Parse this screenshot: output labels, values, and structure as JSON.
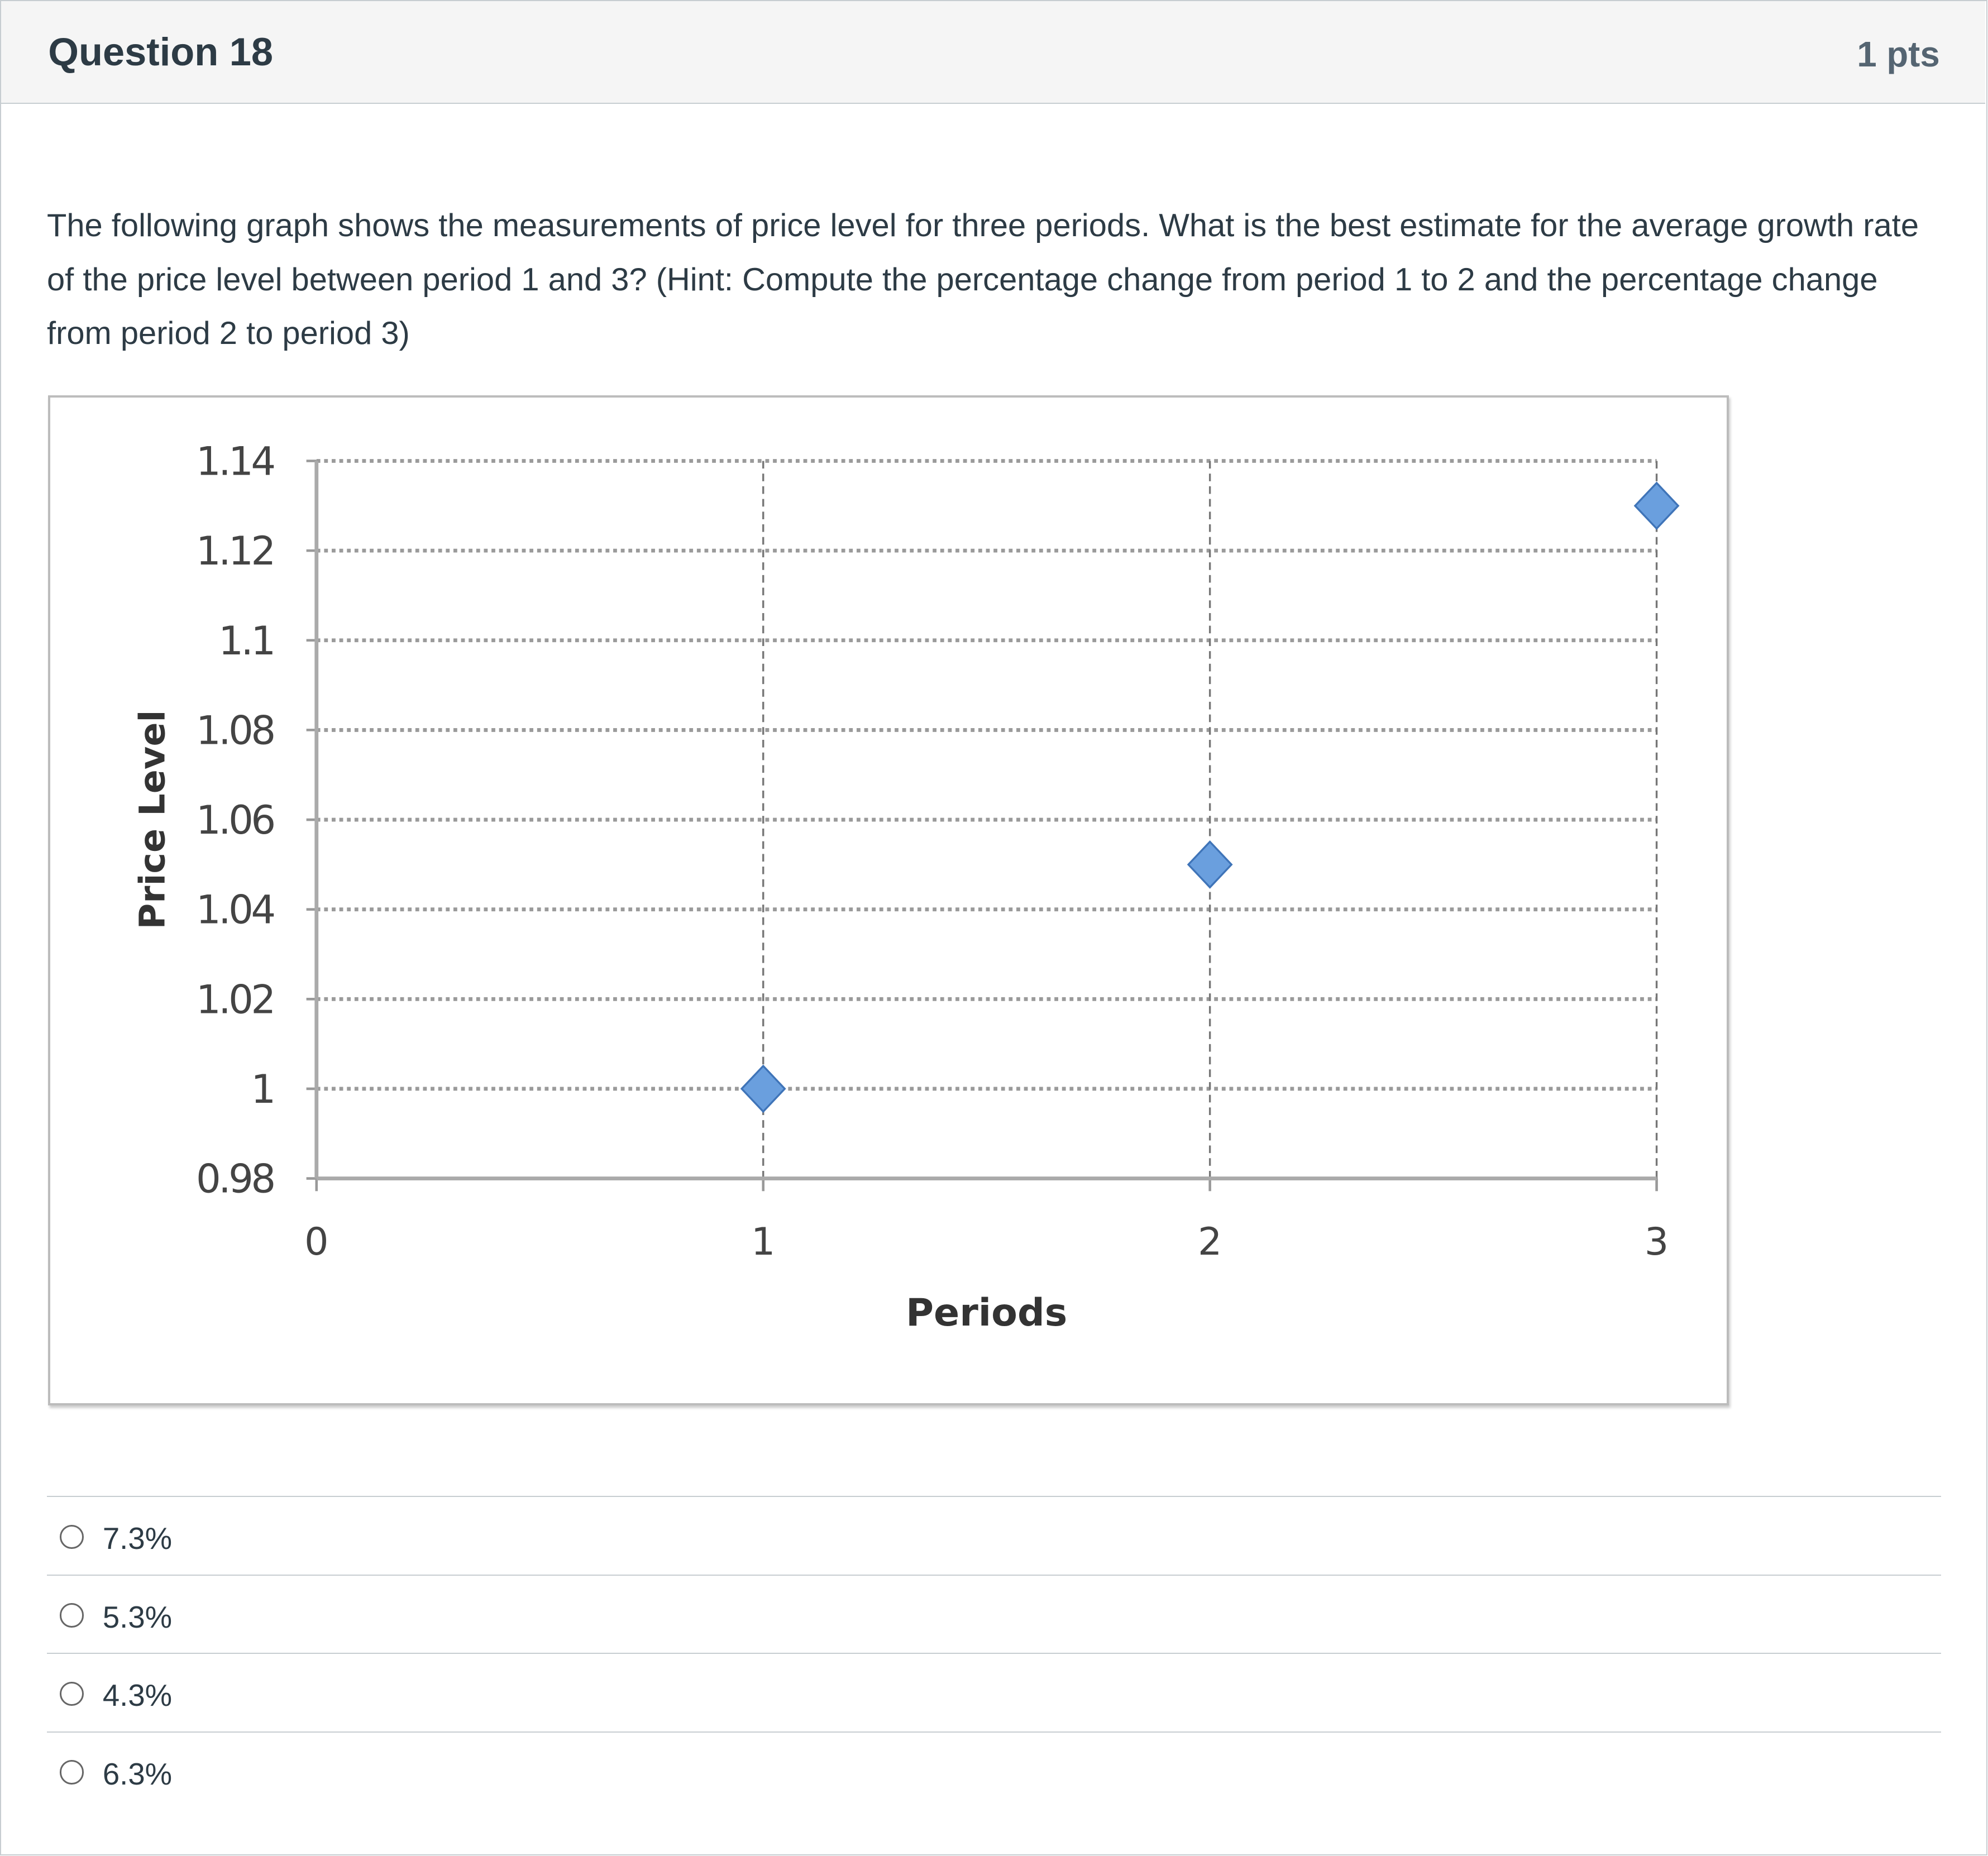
{
  "question": {
    "title": "Question 18",
    "points": "1 pts",
    "text": "The following graph shows the measurements of price level for three periods. What is the best estimate for the average growth rate of the price level between period 1 and 3? (Hint: Compute the percentage change from period 1 to 2 and the percentage change from period 2 to period 3)"
  },
  "answers": [
    {
      "label": "7.3%"
    },
    {
      "label": "5.3%"
    },
    {
      "label": "4.3%"
    },
    {
      "label": "6.3%"
    }
  ],
  "colors": {
    "marker": "#6a9fde",
    "marker_stroke": "#3f74b8"
  },
  "chart_data": {
    "type": "scatter",
    "title": "",
    "xlabel": "Periods",
    "ylabel": "Price Level",
    "xlim": [
      0,
      3
    ],
    "ylim": [
      0.98,
      1.14
    ],
    "xticks": [
      "0",
      "1",
      "2",
      "3"
    ],
    "yticks": [
      "0.98",
      "1",
      "1.02",
      "1.04",
      "1.06",
      "1.08",
      "1.1",
      "1.12",
      "1.14"
    ],
    "grid": true,
    "series": [
      {
        "name": "Price Level",
        "x": [
          1,
          2,
          3
        ],
        "y": [
          1.0,
          1.05,
          1.13
        ]
      }
    ]
  }
}
